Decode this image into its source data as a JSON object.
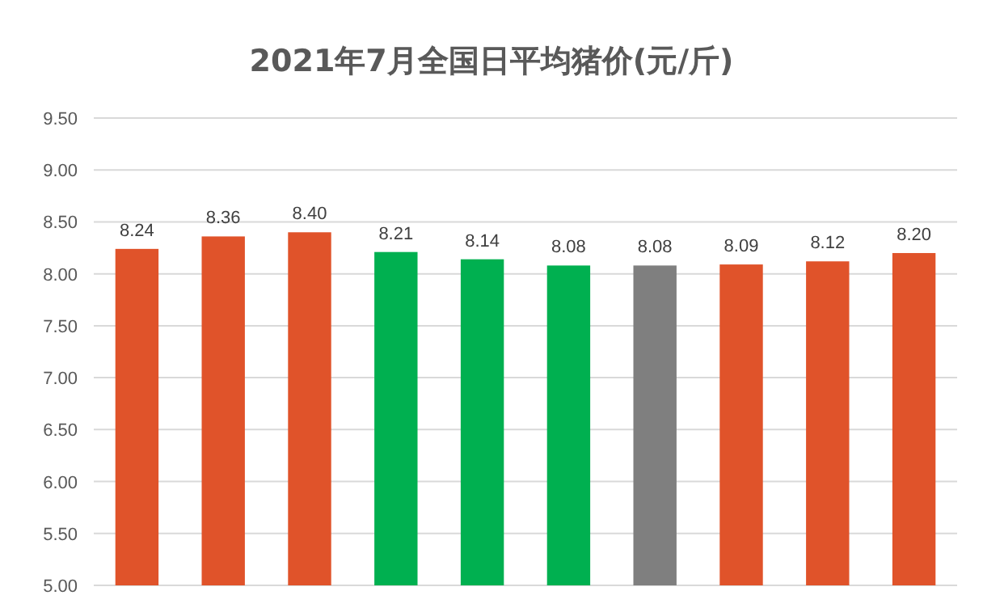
{
  "chart_data": {
    "type": "bar",
    "title": "2021年7月全国日平均猪价(元/斤)",
    "categories": [
      null,
      null,
      null,
      null,
      null,
      null,
      null,
      null,
      null,
      null
    ],
    "values": [
      8.24,
      8.36,
      8.4,
      8.21,
      8.14,
      8.08,
      8.08,
      8.09,
      8.12,
      8.2
    ],
    "value_labels": [
      "8.24",
      "8.36",
      "8.40",
      "8.21",
      "8.14",
      "8.08",
      "8.08",
      "8.09",
      "8.12",
      "8.20"
    ],
    "colors": [
      "#e0532a",
      "#e0532a",
      "#e0532a",
      "#00b050",
      "#00b050",
      "#00b050",
      "#7f7f7f",
      "#e0532a",
      "#e0532a",
      "#e0532a"
    ],
    "ylim": [
      5,
      9.5
    ],
    "yticks": [
      {
        "value": 5,
        "label": "5.00"
      },
      {
        "value": 5.5,
        "label": "5.50"
      },
      {
        "value": 6,
        "label": "6.00"
      },
      {
        "value": 6.5,
        "label": "6.50"
      },
      {
        "value": 7,
        "label": "7.00"
      },
      {
        "value": 7.5,
        "label": "7.50"
      },
      {
        "value": 8,
        "label": "8.00"
      },
      {
        "value": 8.5,
        "label": "8.50"
      },
      {
        "value": 9,
        "label": "9.00"
      },
      {
        "value": 9.5,
        "label": "9.50"
      }
    ],
    "grid": "y"
  }
}
